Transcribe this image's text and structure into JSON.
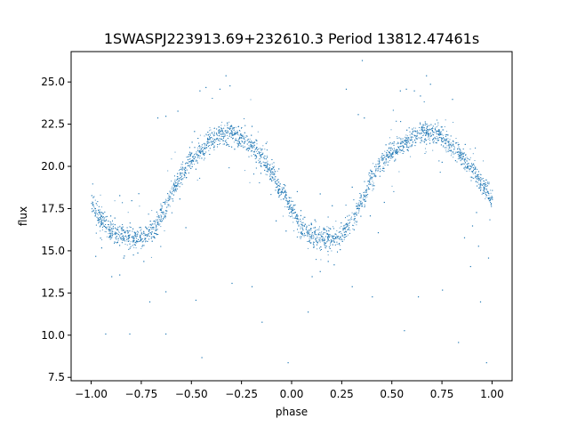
{
  "chart_data": {
    "type": "scatter",
    "title": "1SWASPJ223913.69+232610.3 Period 13812.47461s",
    "xlabel": "phase",
    "ylabel": "flux",
    "xlim": [
      -1.1,
      1.1
    ],
    "ylim": [
      7.3,
      26.8
    ],
    "x_ticks": [
      -1.0,
      -0.75,
      -0.5,
      -0.25,
      0.0,
      0.25,
      0.5,
      0.75,
      1.0
    ],
    "x_tick_labels": [
      "−1.00",
      "−0.75",
      "−0.50",
      "−0.25",
      "0.00",
      "0.25",
      "0.50",
      "0.75",
      "1.00"
    ],
    "y_ticks": [
      7.5,
      10.0,
      12.5,
      15.0,
      17.5,
      20.0,
      22.5,
      25.0
    ],
    "y_tick_labels": [
      "7.5",
      "10.0",
      "12.5",
      "15.0",
      "17.5",
      "20.0",
      "22.5",
      "25.0"
    ],
    "grid": false,
    "legend": "none",
    "point_color": "#1f77b4",
    "series": [
      {
        "phase_range": [
          -1.0,
          1.0
        ],
        "profile": {
          "phase": [
            -1.0,
            -0.95,
            -0.9,
            -0.85,
            -0.8,
            -0.75,
            -0.7,
            -0.65,
            -0.6,
            -0.55,
            -0.5,
            -0.45,
            -0.4,
            -0.35,
            -0.3,
            -0.25,
            -0.2,
            -0.15,
            -0.1,
            -0.05,
            0.0,
            0.05,
            0.1,
            0.15,
            0.2,
            0.25,
            0.3,
            0.35,
            0.4,
            0.45,
            0.5,
            0.55,
            0.6,
            0.65,
            0.7,
            0.75,
            0.8,
            0.85,
            0.9,
            0.95,
            1.0
          ],
          "flux": [
            18.0,
            16.9,
            16.1,
            15.9,
            15.8,
            15.8,
            16.2,
            17.2,
            18.5,
            19.6,
            20.4,
            21.0,
            21.6,
            21.9,
            22.0,
            21.7,
            21.2,
            20.5,
            19.6,
            18.6,
            17.4,
            16.4,
            15.9,
            15.8,
            15.8,
            16.0,
            16.8,
            18.0,
            19.3,
            20.3,
            20.9,
            21.4,
            21.7,
            22.0,
            22.0,
            21.8,
            21.3,
            20.6,
            19.8,
            19.0,
            18.1
          ]
        },
        "scatter_spread": 0.45,
        "outliers": [
          [
            -0.93,
            10.1
          ],
          [
            -0.81,
            10.1
          ],
          [
            -0.63,
            10.1
          ],
          [
            -0.45,
            8.7
          ],
          [
            -0.02,
            8.4
          ],
          [
            0.97,
            8.4
          ],
          [
            -0.57,
            23.3
          ],
          [
            -0.46,
            24.5
          ],
          [
            -0.43,
            24.7
          ],
          [
            -0.36,
            24.6
          ],
          [
            -0.33,
            25.4
          ],
          [
            -0.31,
            24.8
          ],
          [
            -0.67,
            22.9
          ],
          [
            -0.63,
            23.0
          ],
          [
            -0.2,
            22.4
          ],
          [
            -0.18,
            21.6
          ],
          [
            0.35,
            26.3
          ],
          [
            0.33,
            23.1
          ],
          [
            0.36,
            22.9
          ],
          [
            0.54,
            24.5
          ],
          [
            0.57,
            24.6
          ],
          [
            0.61,
            24.5
          ],
          [
            0.64,
            24.2
          ],
          [
            0.67,
            25.4
          ],
          [
            0.69,
            24.9
          ],
          [
            0.8,
            24.0
          ],
          [
            0.27,
            24.6
          ],
          [
            -0.96,
            17.0
          ],
          [
            -0.95,
            15.2
          ],
          [
            -0.9,
            13.5
          ],
          [
            -0.86,
            13.6
          ],
          [
            -0.84,
            14.6
          ],
          [
            -0.77,
            14.9
          ],
          [
            -0.74,
            14.4
          ],
          [
            0.1,
            13.5
          ],
          [
            0.14,
            13.8
          ],
          [
            0.18,
            14.4
          ],
          [
            0.21,
            14.2
          ],
          [
            0.24,
            15.1
          ],
          [
            -0.98,
            14.7
          ],
          [
            0.98,
            14.6
          ],
          [
            0.93,
            15.3
          ],
          [
            0.89,
            14.1
          ],
          [
            0.86,
            15.8
          ],
          [
            -0.2,
            12.9
          ],
          [
            0.75,
            12.7
          ],
          [
            0.63,
            12.3
          ],
          [
            0.94,
            12.0
          ],
          [
            0.4,
            12.3
          ],
          [
            -0.48,
            12.1
          ],
          [
            -0.71,
            12.0
          ],
          [
            0.08,
            11.4
          ],
          [
            -0.15,
            10.8
          ],
          [
            0.83,
            9.6
          ],
          [
            0.56,
            10.3
          ],
          [
            -0.63,
            12.6
          ],
          [
            0.3,
            12.9
          ],
          [
            -0.3,
            13.1
          ],
          [
            0.3,
            18.8
          ],
          [
            0.39,
            17.1
          ],
          [
            -0.56,
            18.1
          ],
          [
            -0.53,
            16.4
          ],
          [
            0.46,
            17.9
          ],
          [
            0.43,
            16.1
          ],
          [
            -0.08,
            16.8
          ],
          [
            -0.03,
            16.2
          ],
          [
            0.92,
            17.3
          ],
          [
            0.9,
            16.5
          ],
          [
            -0.86,
            18.3
          ],
          [
            -0.8,
            18.0
          ],
          [
            0.14,
            18.4
          ],
          [
            0.2,
            17.7
          ]
        ]
      }
    ]
  }
}
